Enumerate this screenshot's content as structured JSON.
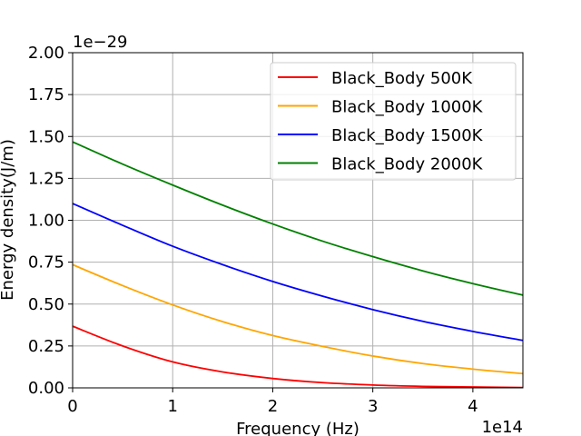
{
  "chart_data": {
    "type": "line",
    "title": "",
    "xlabel": "Frequency (Hz)",
    "ylabel": "Energy density(J/m)",
    "x_offset_label": "1e14",
    "y_offset_label": "1e−29",
    "xlim": [
      0,
      4.5
    ],
    "ylim": [
      0,
      2.0
    ],
    "x_ticks": [
      0,
      1,
      2,
      3,
      4
    ],
    "x_tick_labels": [
      "0",
      "1",
      "2",
      "3",
      "4"
    ],
    "y_ticks": [
      0,
      0.25,
      0.5,
      0.75,
      1.0,
      1.25,
      1.5,
      1.75,
      2.0
    ],
    "y_tick_labels": [
      "0.00",
      "0.25",
      "0.50",
      "0.75",
      "1.00",
      "1.25",
      "1.50",
      "1.75",
      "2.00"
    ],
    "grid": true,
    "legend_position": "top-right",
    "x": [
      0,
      0.5,
      1.0,
      1.5,
      2.0,
      2.5,
      3.0,
      3.5,
      4.0,
      4.5
    ],
    "series": [
      {
        "name": "Black_Body 500K",
        "color": "#ff0000",
        "values": [
          0.368,
          0.25,
          0.155,
          0.095,
          0.056,
          0.031,
          0.017,
          0.009,
          0.005,
          0.002
        ]
      },
      {
        "name": "Black_Body 1000K",
        "color": "#ffa500",
        "values": [
          0.735,
          0.61,
          0.495,
          0.395,
          0.312,
          0.247,
          0.19,
          0.145,
          0.112,
          0.085
        ]
      },
      {
        "name": "Black_Body 1500K",
        "color": "#0000ff",
        "values": [
          1.1,
          0.97,
          0.845,
          0.735,
          0.635,
          0.547,
          0.467,
          0.397,
          0.337,
          0.283
        ]
      },
      {
        "name": "Black_Body 2000K",
        "color": "#008000",
        "values": [
          1.468,
          1.335,
          1.21,
          1.09,
          0.978,
          0.875,
          0.783,
          0.698,
          0.622,
          0.553
        ]
      }
    ]
  }
}
